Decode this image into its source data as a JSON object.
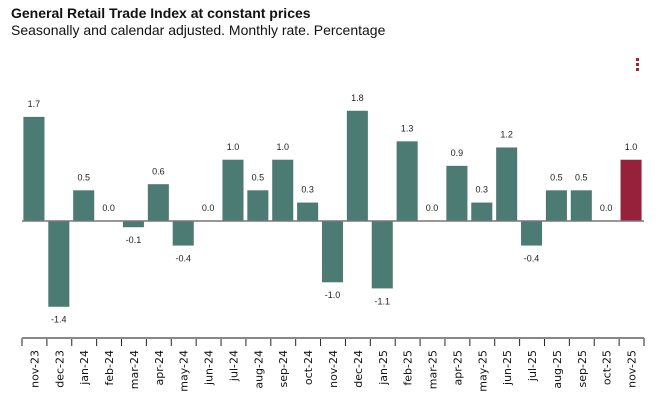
{
  "header": {
    "title": "General Retail Trade Index at constant prices",
    "subtitle": "Seasonally and calendar adjusted. Monthly rate. Percentage"
  },
  "menu": {
    "icon": "kebab-menu-icon",
    "color": "#9b2335"
  },
  "chart_data": {
    "type": "bar",
    "title": "General Retail Trade Index at constant prices",
    "subtitle": "Seasonally and calendar adjusted. Monthly rate. Percentage",
    "xlabel": "",
    "ylabel": "",
    "categories": [
      "nov-23",
      "dec-23",
      "jan-24",
      "feb-24",
      "mar-24",
      "apr-24",
      "may-24",
      "jun-24",
      "jul-24",
      "aug-24",
      "sep-24",
      "oct-24",
      "nov-24",
      "dec-24",
      "jan-25",
      "feb-25",
      "mar-25",
      "apr-25",
      "may-25",
      "jun-25",
      "jul-25",
      "aug-25",
      "sep-25",
      "oct-25",
      "nov-25"
    ],
    "values": [
      1.7,
      -1.4,
      0.5,
      0.0,
      -0.1,
      0.6,
      -0.4,
      0.0,
      1.0,
      0.5,
      1.0,
      0.3,
      -1.0,
      1.8,
      -1.1,
      1.3,
      0.0,
      0.9,
      0.3,
      1.2,
      -0.4,
      0.5,
      0.5,
      0.0,
      1.0
    ],
    "data_labels": [
      "1.7",
      "-1.4",
      "0.5",
      "0.0",
      "-0.1",
      "0.6",
      "-0.4",
      "0.0",
      "1.0",
      "0.5",
      "1.0",
      "0.3",
      "-1.0",
      "1.8",
      "-1.1",
      "1.3",
      "0.0",
      "0.9",
      "0.3",
      "1.2",
      "-0.4",
      "0.5",
      "0.5",
      "0.0",
      "1.0"
    ],
    "highlight_index": 24,
    "colors": {
      "bar": "#4b7b72",
      "highlight": "#97213a",
      "zero_line": "#777777",
      "axis": "#888888"
    },
    "ylim": [
      -1.9,
      1.9
    ],
    "grid": false,
    "legend": "none"
  }
}
